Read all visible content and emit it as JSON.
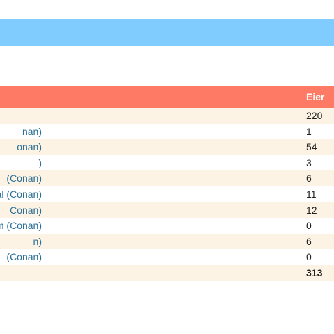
{
  "table": {
    "header": {
      "value_label": "Eier"
    },
    "rows": [
      {
        "name": "",
        "value": "220"
      },
      {
        "name": "nan)",
        "value": "1"
      },
      {
        "name": "onan)",
        "value": "54"
      },
      {
        "name": ")",
        "value": "3"
      },
      {
        "name": "(Conan)",
        "value": "6"
      },
      {
        "name": "al (Conan)",
        "value": "11"
      },
      {
        "name": "Conan)",
        "value": "12"
      },
      {
        "name": "om (Conan)",
        "value": "0"
      },
      {
        "name": "n)",
        "value": "6"
      },
      {
        "name": "(Conan)",
        "value": "0"
      },
      {
        "name": "",
        "value": "313"
      }
    ]
  },
  "colors": {
    "banner": "#80ccff",
    "header": "#ff7a64",
    "row_alt": "#fdf3e4",
    "link": "#2a6f97"
  }
}
